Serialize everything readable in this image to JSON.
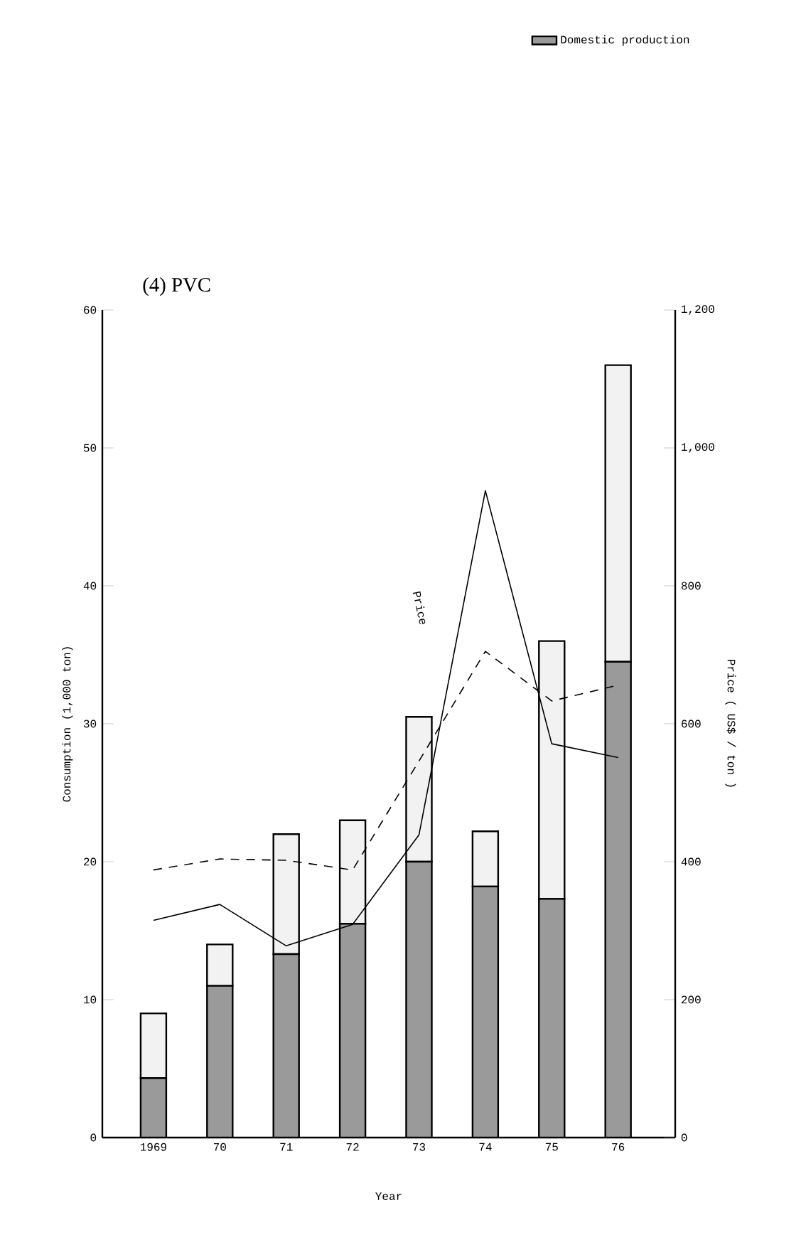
{
  "chart_data": {
    "type": "bar",
    "title": "(4) PVC",
    "xlabel": "Year",
    "ylabel": "Consumption (1,000 ton)",
    "y2label": "Price ( US$ / ton )",
    "categories": [
      "1969",
      "70",
      "71",
      "72",
      "73",
      "74",
      "75",
      "76"
    ],
    "stacked": true,
    "series": [
      {
        "name": "Domestic production",
        "color": "#9a9a9a",
        "values": [
          4.3,
          11,
          13.3,
          15.5,
          20,
          18.2,
          17.3,
          34.5
        ]
      },
      {
        "color": "#f2f2f2",
        "values": [
          4.7,
          3,
          8.7,
          7.5,
          10.5,
          4,
          18.7,
          21.5
        ]
      },
      {
        "type": "line",
        "axis": "y2",
        "color": "#000000",
        "line_style": "solid",
        "values": [
          315,
          338,
          278,
          309,
          439,
          938,
          571,
          551
        ]
      },
      {
        "type": "line",
        "axis": "y2",
        "color": "#000000",
        "line_style": "dashed",
        "values": [
          388,
          404,
          402,
          388,
          546,
          705,
          633,
          656
        ]
      }
    ],
    "ylim": [
      0,
      60
    ],
    "yticks": [
      0,
      10,
      20,
      30,
      40,
      50,
      60
    ],
    "y2lim": [
      0,
      1200
    ],
    "y2ticks": [
      0,
      200,
      400,
      600,
      800,
      {
        "value": 1000,
        "label": "1,000"
      },
      {
        "value": 1200,
        "label": "1,200"
      }
    ],
    "annotations": [
      "Price"
    ],
    "legend": "top right",
    "grid": false
  }
}
